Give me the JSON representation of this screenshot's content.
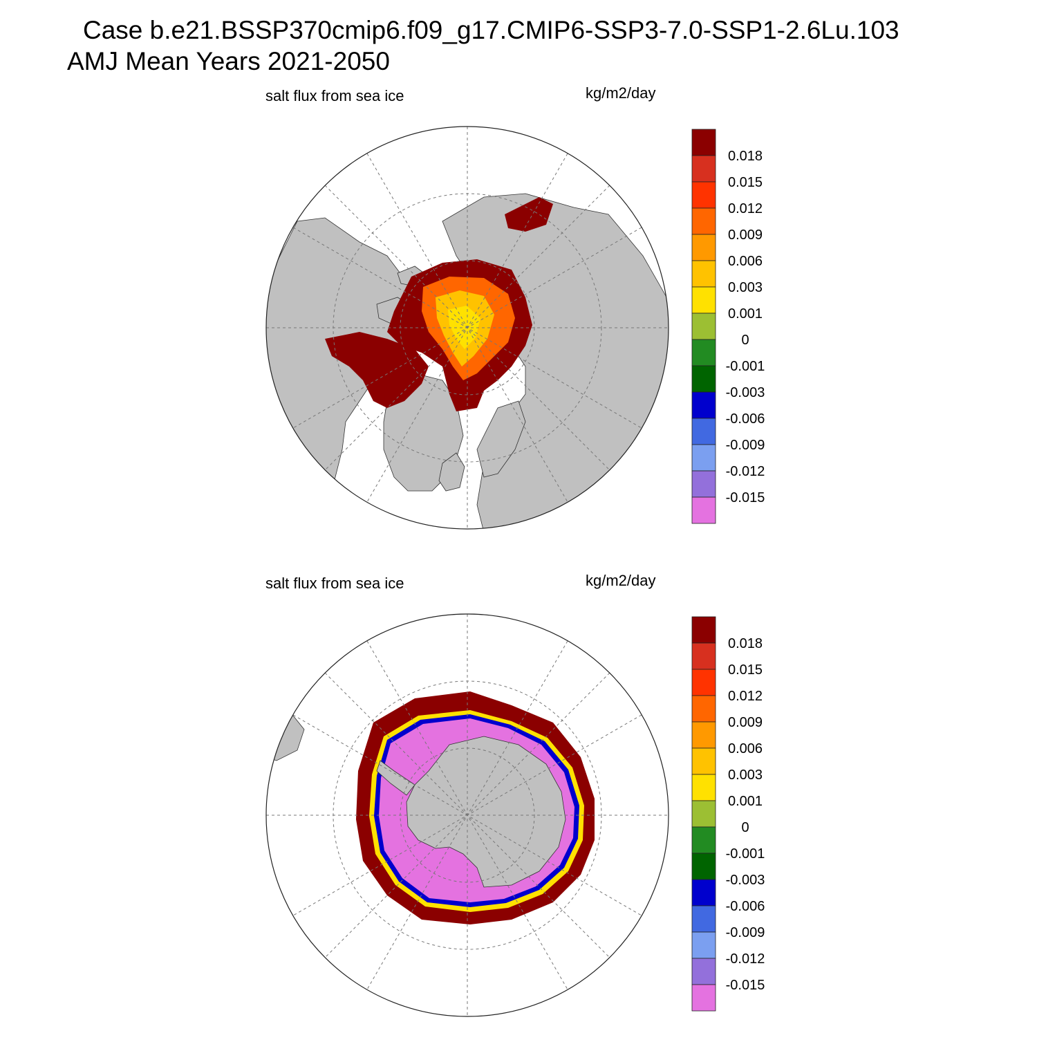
{
  "header": {
    "case": "Case b.e21.BSSP370cmip6.f09_g17.CMIP6-SSP3-7.0-SSP1-2.6Lu.103",
    "period": "AMJ Mean   Years 2021-2050"
  },
  "panels": [
    {
      "id": "north",
      "hemisphere": "NH",
      "variable": "salt flux from sea ice",
      "units": "kg/m2/day"
    },
    {
      "id": "south",
      "hemisphere": "SH",
      "variable": "salt flux from sea ice",
      "units": "kg/m2/day"
    }
  ],
  "colorbar": {
    "labels": [
      "0.018",
      "0.015",
      "0.012",
      "0.009",
      "0.006",
      "0.003",
      "0.001",
      "0",
      "-0.001",
      "-0.003",
      "-0.006",
      "-0.009",
      "-0.012",
      "-0.015"
    ],
    "colors": [
      "#8b0000",
      "#d7301f",
      "#ff3300",
      "#ff6600",
      "#ff9900",
      "#ffc200",
      "#ffe100",
      "#9cbf33",
      "#228b22",
      "#006400",
      "#0000cd",
      "#4169e1",
      "#7b9ff0",
      "#9370db",
      "#e472e0"
    ]
  },
  "colors": {
    "land": "#c0c0c0",
    "ocean": "#ffffff",
    "grid": "#777777"
  }
}
